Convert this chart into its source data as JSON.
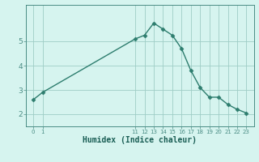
{
  "x": [
    0,
    1,
    11,
    12,
    13,
    14,
    15,
    16,
    17,
    18,
    19,
    20,
    21,
    22,
    23
  ],
  "y": [
    2.6,
    2.9,
    5.1,
    5.25,
    5.75,
    5.5,
    5.25,
    4.7,
    3.8,
    3.1,
    2.7,
    2.7,
    2.4,
    2.2,
    2.05
  ],
  "line_color": "#2d7d6e",
  "marker_color": "#2d7d6e",
  "bg_color": "#d6f4ef",
  "grid_color": "#9ecdc6",
  "axis_color": "#4a8c84",
  "xlabel": "Humidex (Indice chaleur)",
  "xlabel_color": "#1a5e55",
  "yticks": [
    2,
    3,
    4,
    5
  ],
  "ylim": [
    1.5,
    6.5
  ],
  "xlim": [
    -0.8,
    23.8
  ]
}
